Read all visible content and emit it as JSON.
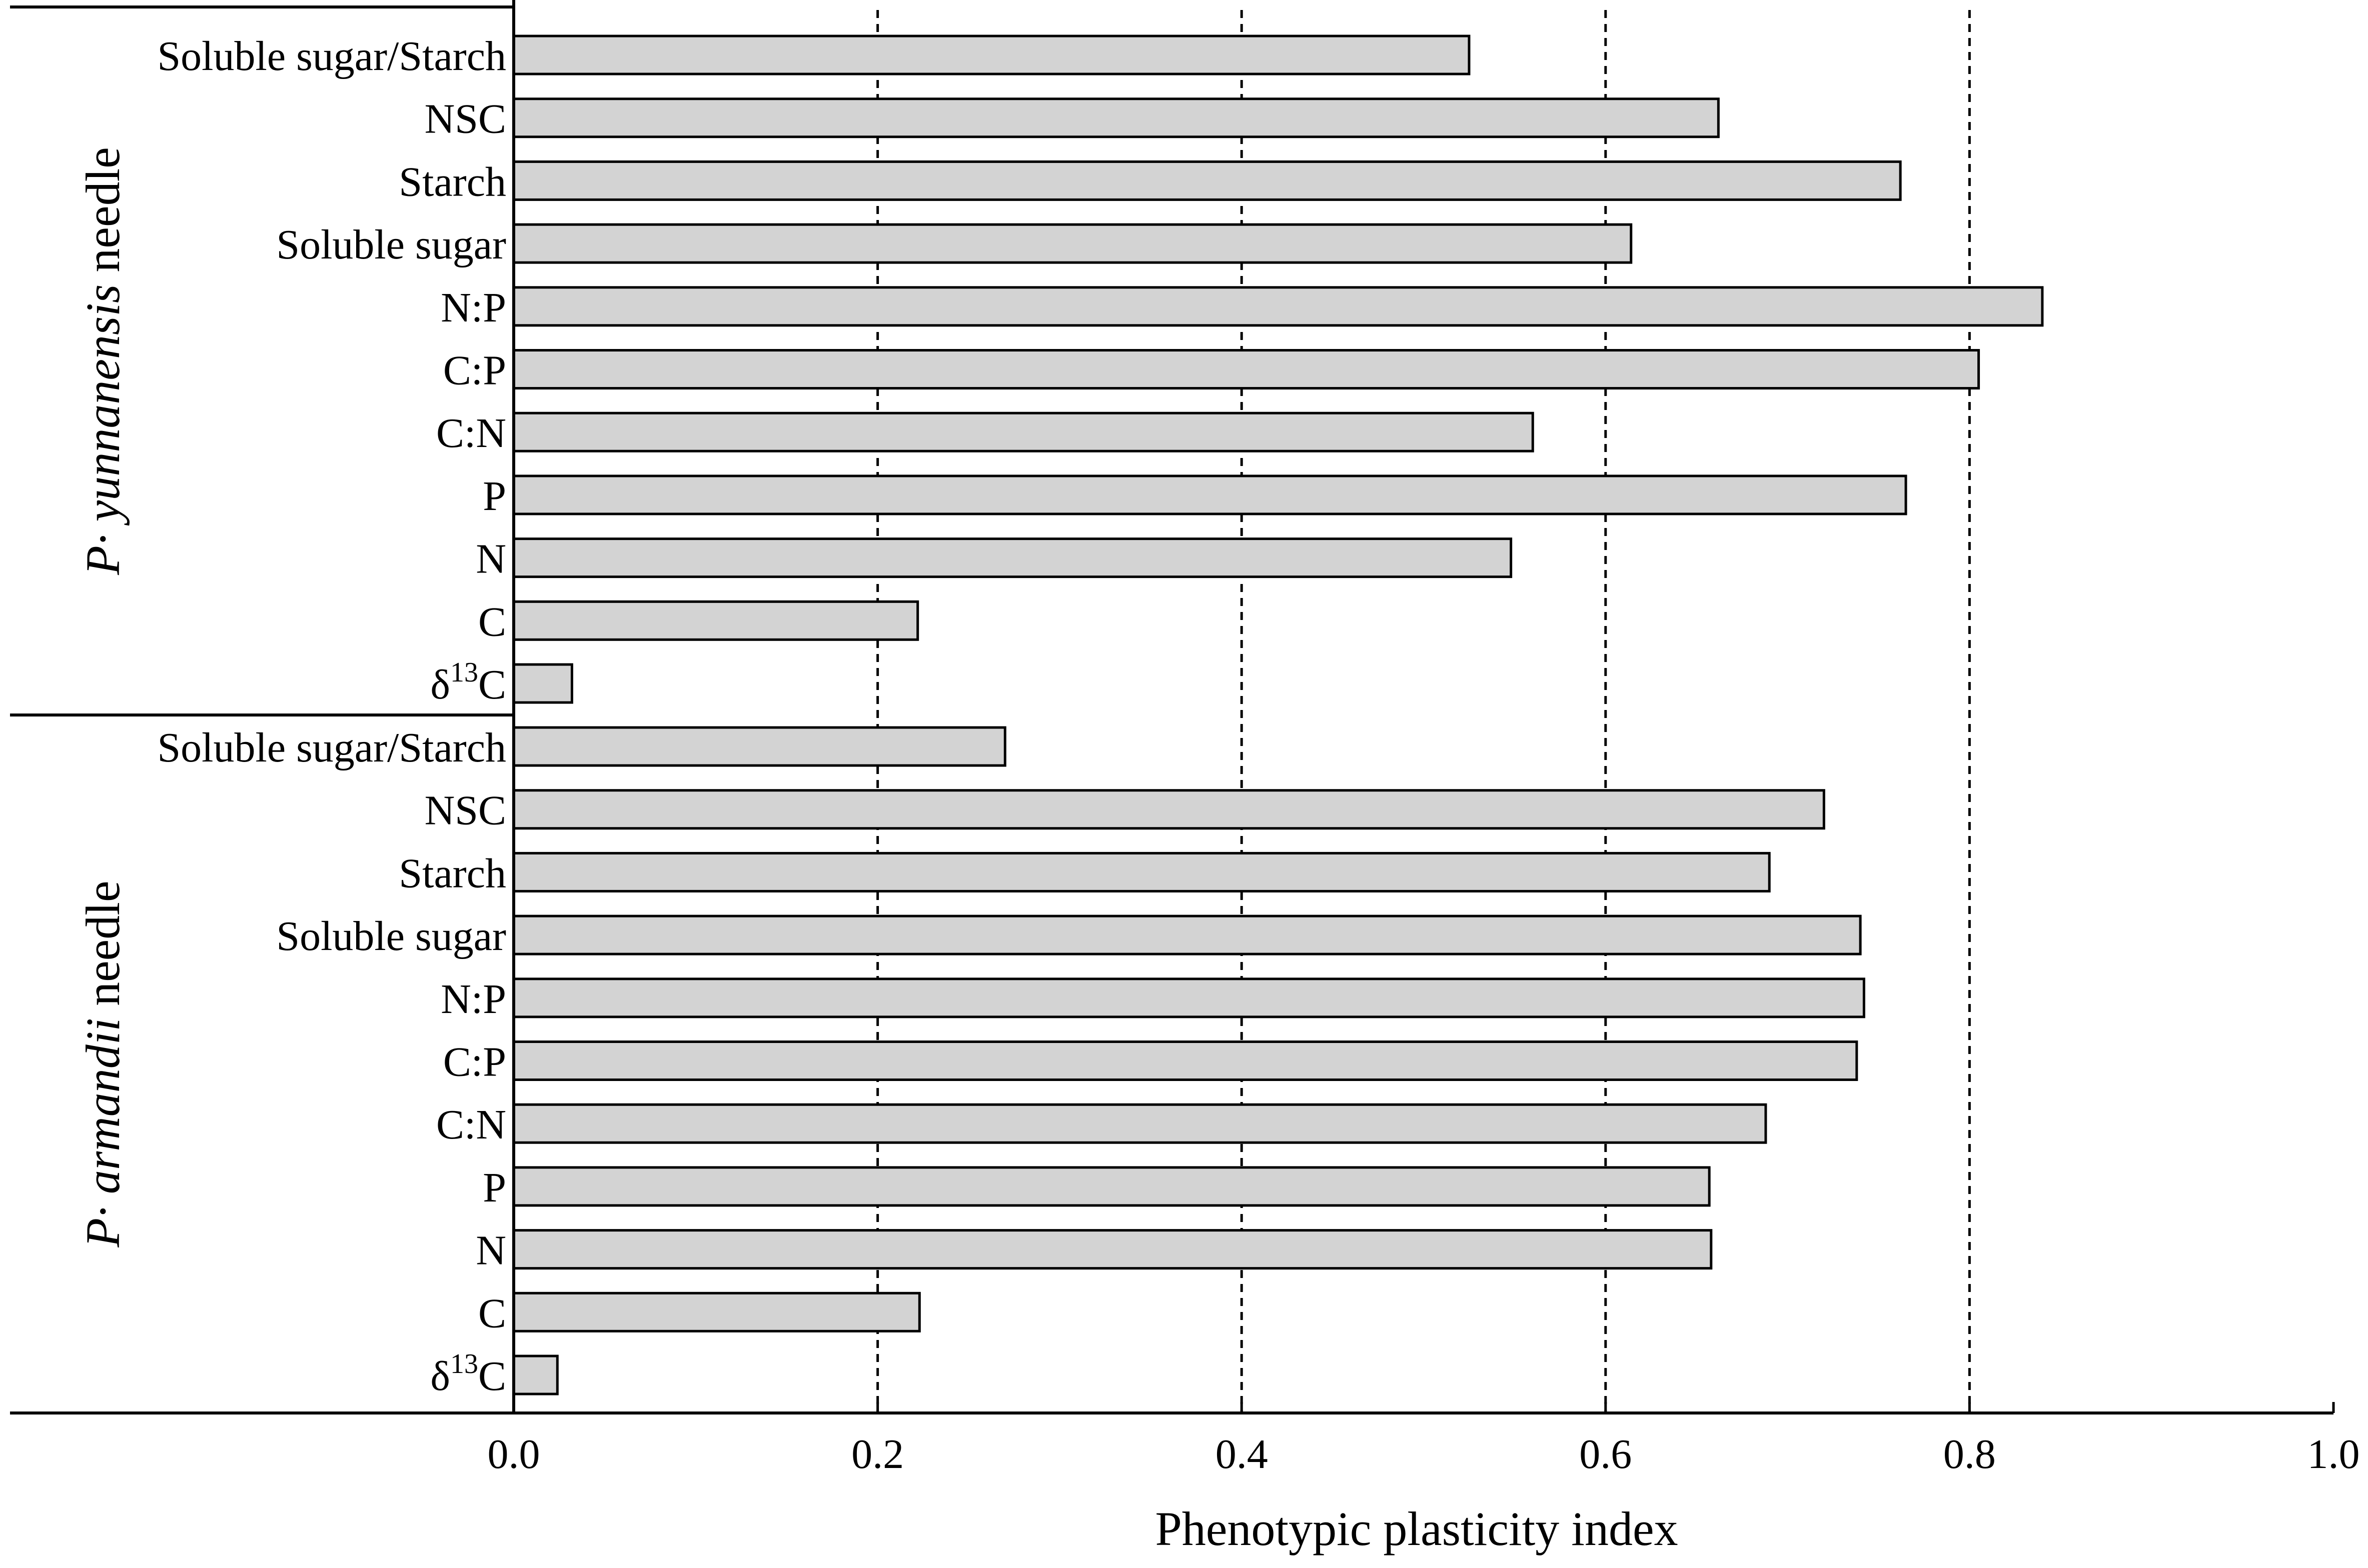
{
  "chart_data": {
    "type": "bar",
    "orientation": "horizontal",
    "xlabel": "Phenotypic plasticity index",
    "xlim": [
      0,
      1.0
    ],
    "xticks": [
      "0.0",
      "0.2",
      "0.4",
      "0.6",
      "0.8",
      "1.0"
    ],
    "gridlines": {
      "x": [
        0.2,
        0.4,
        0.6,
        0.8
      ],
      "style": "dashed"
    },
    "colors": {
      "bar_fill": "#d3d3d3",
      "bar_stroke": "#000000"
    },
    "groups": [
      {
        "name_italic": "P· yunnanensis",
        "name_plain": " needle",
        "categories": [
          "Soluble sugar/Starch",
          "NSC",
          "Starch",
          "Soluble sugar",
          "N:P",
          "C:P",
          "C:N",
          "P",
          "N",
          "C",
          "δ13C"
        ],
        "values": [
          0.525,
          0.662,
          0.762,
          0.614,
          0.84,
          0.805,
          0.56,
          0.765,
          0.548,
          0.222,
          0.032
        ]
      },
      {
        "name_italic": "P· armandii",
        "name_plain": " needle",
        "categories": [
          "Soluble sugar/Starch",
          "NSC",
          "Starch",
          "Soluble sugar",
          "N:P",
          "C:P",
          "C:N",
          "P",
          "N",
          "C",
          "δ13C"
        ],
        "values": [
          0.27,
          0.72,
          0.69,
          0.74,
          0.742,
          0.738,
          0.688,
          0.657,
          0.658,
          0.223,
          0.024
        ]
      }
    ]
  }
}
